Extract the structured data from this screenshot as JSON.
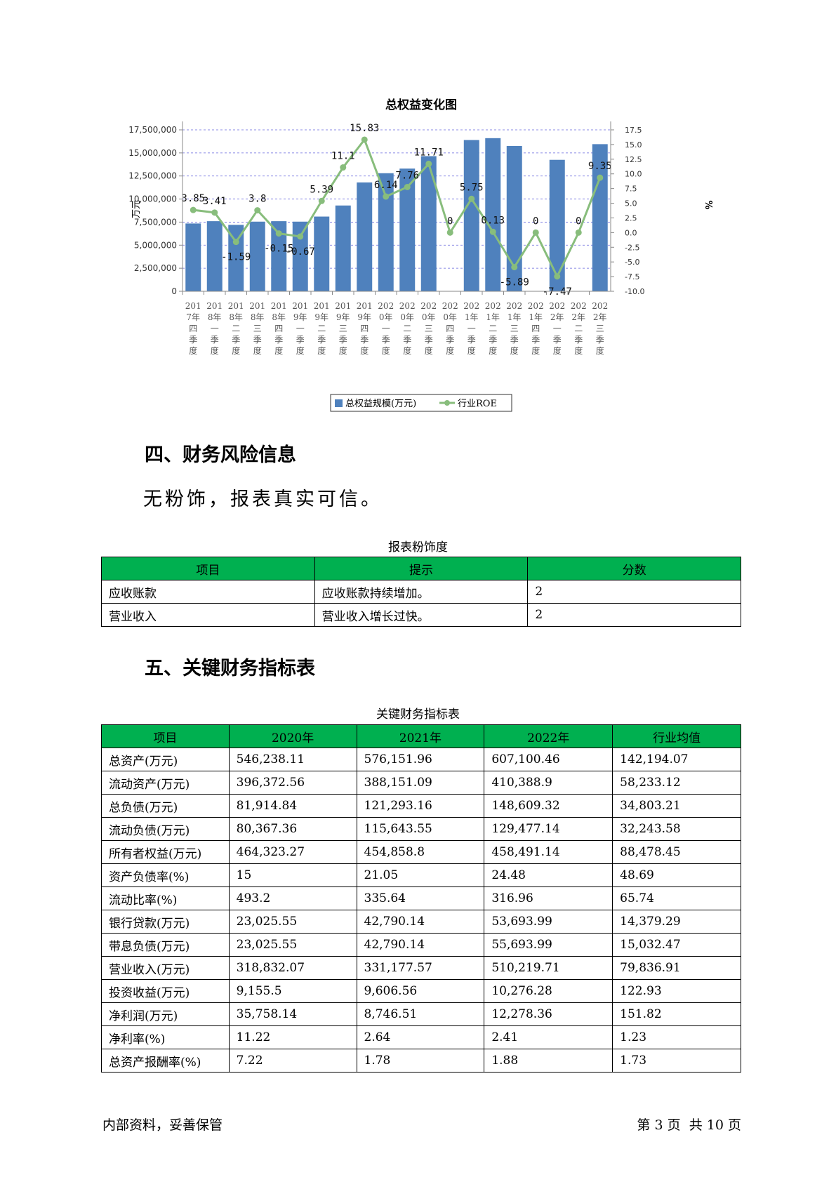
{
  "chart_data": {
    "type": "bar+line",
    "title": "总权益变化图",
    "ylabel": "万元",
    "y2label": "%",
    "ylim": [
      0,
      17500000
    ],
    "y2lim": [
      -10,
      17.5
    ],
    "yticks": [
      "17,500,000",
      "15,000,000",
      "12,500,000",
      "10,000,000",
      "7,500,000",
      "5,000,000",
      "2,500,000",
      "0"
    ],
    "y2ticks": [
      "17.5",
      "15.0",
      "12.5",
      "10.0",
      "7.5",
      "5.0",
      "2.5",
      "0.0",
      "-2.5",
      "-5.0",
      "-7.5",
      "-10.0"
    ],
    "categories": [
      [
        "201",
        "7年",
        "四",
        "季",
        "度"
      ],
      [
        "201",
        "8年",
        "一",
        "季",
        "度"
      ],
      [
        "201",
        "8年",
        "二",
        "季",
        "度"
      ],
      [
        "201",
        "8年",
        "三",
        "季",
        "度"
      ],
      [
        "201",
        "8年",
        "四",
        "季",
        "度"
      ],
      [
        "201",
        "9年",
        "一",
        "季",
        "度"
      ],
      [
        "201",
        "9年",
        "二",
        "季",
        "度"
      ],
      [
        "201",
        "9年",
        "三",
        "季",
        "度"
      ],
      [
        "201",
        "9年",
        "四",
        "季",
        "度"
      ],
      [
        "202",
        "0年",
        "一",
        "季",
        "度"
      ],
      [
        "202",
        "0年",
        "二",
        "季",
        "度"
      ],
      [
        "202",
        "0年",
        "三",
        "季",
        "度"
      ],
      [
        "202",
        "0年",
        "四",
        "季",
        "度"
      ],
      [
        "202",
        "1年",
        "一",
        "季",
        "度"
      ],
      [
        "202",
        "1年",
        "二",
        "季",
        "度"
      ],
      [
        "202",
        "1年",
        "三",
        "季",
        "度"
      ],
      [
        "202",
        "1年",
        "四",
        "季",
        "度"
      ],
      [
        "202",
        "2年",
        "一",
        "季",
        "度"
      ],
      [
        "202",
        "2年",
        "二",
        "季",
        "度"
      ],
      [
        "202",
        "2年",
        "三",
        "季",
        "度"
      ]
    ],
    "series": [
      {
        "name": "总权益规模(万元)",
        "kind": "bar",
        "color": "#4f81bd",
        "values": [
          7350000,
          7600000,
          7200000,
          7550000,
          7600000,
          7550000,
          8100000,
          9300000,
          11800000,
          12800000,
          13300000,
          14650000,
          0,
          16400000,
          16600000,
          15750000,
          0,
          14250000,
          0,
          15950000
        ]
      },
      {
        "name": "行业ROE",
        "kind": "line",
        "color": "#88bd7c",
        "values": [
          3.85,
          3.41,
          -1.59,
          3.8,
          -0.15,
          -0.67,
          5.39,
          11.1,
          15.83,
          6.14,
          7.76,
          11.71,
          0,
          5.75,
          0.13,
          -5.89,
          0,
          -7.47,
          0,
          9.35
        ],
        "labels": [
          "3.85",
          "3.41",
          "-1.59",
          "3.8",
          "-0.15",
          "-0.67",
          "5.39",
          "11.1",
          "15.83",
          "6.14",
          "7.76",
          "11.71",
          "0",
          "5.75",
          "0.13",
          "-5.89",
          "0",
          "-7.47",
          "0",
          "9.35"
        ]
      }
    ],
    "grid": true,
    "legend": "bottom"
  },
  "sections": {
    "risk_heading": "四、财务风险信息",
    "risk_text": "无粉饰，报表真实可信。",
    "key_heading": "五、关键财务指标表"
  },
  "fraud_table": {
    "caption": "报表粉饰度",
    "headers": [
      "项目",
      "提示",
      "分数"
    ],
    "rows": [
      [
        "应收账款",
        "应收账款持续增加。",
        "2"
      ],
      [
        "营业收入",
        "营业收入增长过快。",
        "2"
      ]
    ]
  },
  "key_table": {
    "caption": "关键财务指标表",
    "headers": [
      "项目",
      "2020年",
      "2021年",
      "2022年",
      "行业均值"
    ],
    "rows": [
      [
        "总资产(万元)",
        "546,238.11",
        "576,151.96",
        "607,100.46",
        "142,194.07"
      ],
      [
        "流动资产(万元)",
        "396,372.56",
        "388,151.09",
        "410,388.9",
        "58,233.12"
      ],
      [
        "总负债(万元)",
        "81,914.84",
        "121,293.16",
        "148,609.32",
        "34,803.21"
      ],
      [
        "流动负债(万元)",
        "80,367.36",
        "115,643.55",
        "129,477.14",
        "32,243.58"
      ],
      [
        "所有者权益(万元)",
        "464,323.27",
        "454,858.8",
        "458,491.14",
        "88,478.45"
      ],
      [
        "资产负债率(%)",
        "15",
        "21.05",
        "24.48",
        "48.69"
      ],
      [
        "流动比率(%)",
        "493.2",
        "335.64",
        "316.96",
        "65.74"
      ],
      [
        "银行贷款(万元)",
        "23,025.55",
        "42,790.14",
        "53,693.99",
        "14,379.29"
      ],
      [
        "带息负债(万元)",
        "23,025.55",
        "42,790.14",
        "55,693.99",
        "15,032.47"
      ],
      [
        "营业收入(万元)",
        "318,832.07",
        "331,177.57",
        "510,219.71",
        "79,836.91"
      ],
      [
        "投资收益(万元)",
        "9,155.5",
        "9,606.56",
        "10,276.28",
        "122.93"
      ],
      [
        "净利润(万元)",
        "35,758.14",
        "8,746.51",
        "12,278.36",
        "151.82"
      ],
      [
        "净利率(%)",
        "11.22",
        "2.64",
        "2.41",
        "1.23"
      ],
      [
        "总资产报酬率(%)",
        "7.22",
        "1.78",
        "1.88",
        "1.73"
      ]
    ]
  },
  "footer": {
    "left": "内部资料，妥善保管",
    "page_prefix": "第",
    "page_current": "3",
    "page_mid": "页  共",
    "page_total": "10",
    "page_suffix": "页"
  }
}
